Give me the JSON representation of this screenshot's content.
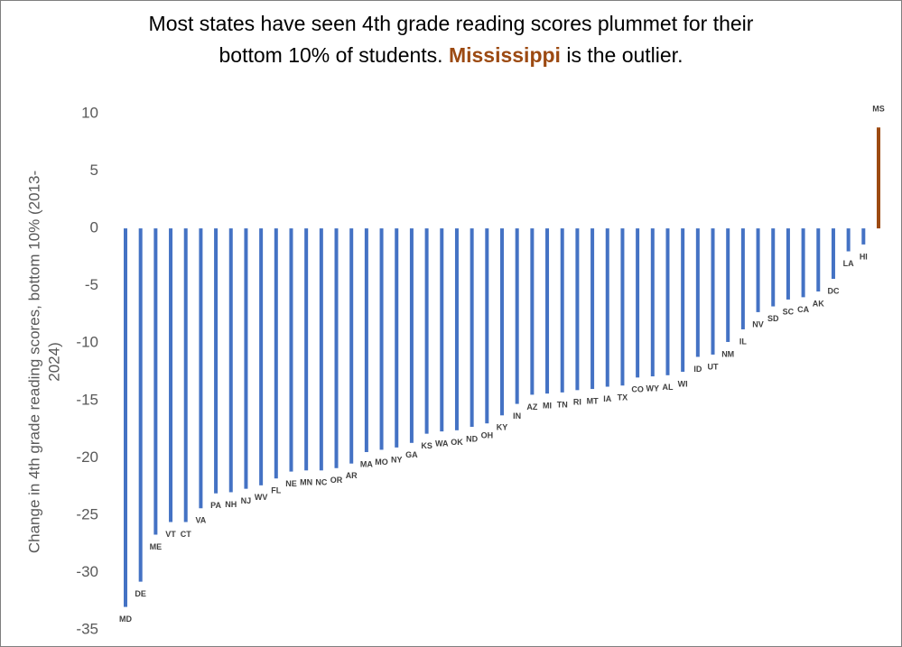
{
  "chart_data": {
    "type": "bar",
    "title": [
      "Most states have seen 4th grade reading scores plummet for their",
      "bottom 10% of students.",
      "Mississippi",
      "is the outlier."
    ],
    "title_highlight_color": "#9c4a12",
    "y_label": [
      "Change in 4th grade reading scores, bottom 10% (2013-",
      "2024)"
    ],
    "categories": [
      "MD",
      "DE",
      "ME",
      "VT",
      "CT",
      "VA",
      "PA",
      "NH",
      "NJ",
      "WV",
      "FL",
      "NE",
      "MN",
      "NC",
      "OR",
      "AR",
      "MA",
      "MO",
      "NY",
      "GA",
      "KS",
      "WA",
      "OK",
      "ND",
      "OH",
      "KY",
      "IN",
      "AZ",
      "MI",
      "TN",
      "RI",
      "MT",
      "IA",
      "TX",
      "CO",
      "WY",
      "AL",
      "WI",
      "ID",
      "UT",
      "NM",
      "IL",
      "NV",
      "SD",
      "SC",
      "CA",
      "AK",
      "DC",
      "LA",
      "HI",
      "MS"
    ],
    "values": [
      -33,
      -30.8,
      -26.7,
      -25.6,
      -25.6,
      -24.4,
      -23.1,
      -23,
      -22.7,
      -22.4,
      -21.8,
      -21.2,
      -21.1,
      -21.1,
      -20.9,
      -20.5,
      -19.5,
      -19.3,
      -19.1,
      -18.7,
      -17.9,
      -17.7,
      -17.6,
      -17.3,
      -17,
      -16.3,
      -15.3,
      -14.5,
      -14.4,
      -14.3,
      -14.1,
      -14,
      -13.8,
      -13.7,
      -13,
      -12.9,
      -12.8,
      -12.5,
      -11.2,
      -11,
      -9.9,
      -8.8,
      -7.3,
      -6.8,
      -6.2,
      -6,
      -5.5,
      -4.4,
      -2,
      -1.4,
      8.8
    ],
    "colors": [
      "#4472c4",
      "#4472c4",
      "#4472c4",
      "#4472c4",
      "#4472c4",
      "#4472c4",
      "#4472c4",
      "#4472c4",
      "#4472c4",
      "#4472c4",
      "#4472c4",
      "#4472c4",
      "#4472c4",
      "#4472c4",
      "#4472c4",
      "#4472c4",
      "#4472c4",
      "#4472c4",
      "#4472c4",
      "#4472c4",
      "#4472c4",
      "#4472c4",
      "#4472c4",
      "#4472c4",
      "#4472c4",
      "#4472c4",
      "#4472c4",
      "#4472c4",
      "#4472c4",
      "#4472c4",
      "#4472c4",
      "#4472c4",
      "#4472c4",
      "#4472c4",
      "#4472c4",
      "#4472c4",
      "#4472c4",
      "#4472c4",
      "#4472c4",
      "#4472c4",
      "#4472c4",
      "#4472c4",
      "#4472c4",
      "#4472c4",
      "#4472c4",
      "#4472c4",
      "#4472c4",
      "#4472c4",
      "#4472c4",
      "#4472c4",
      "#9c4a12"
    ],
    "ylim": [
      -35,
      10
    ],
    "yticks": [
      10,
      5,
      0,
      -5,
      -10,
      -15,
      -20,
      -25,
      -30,
      -35
    ],
    "grid": false
  }
}
